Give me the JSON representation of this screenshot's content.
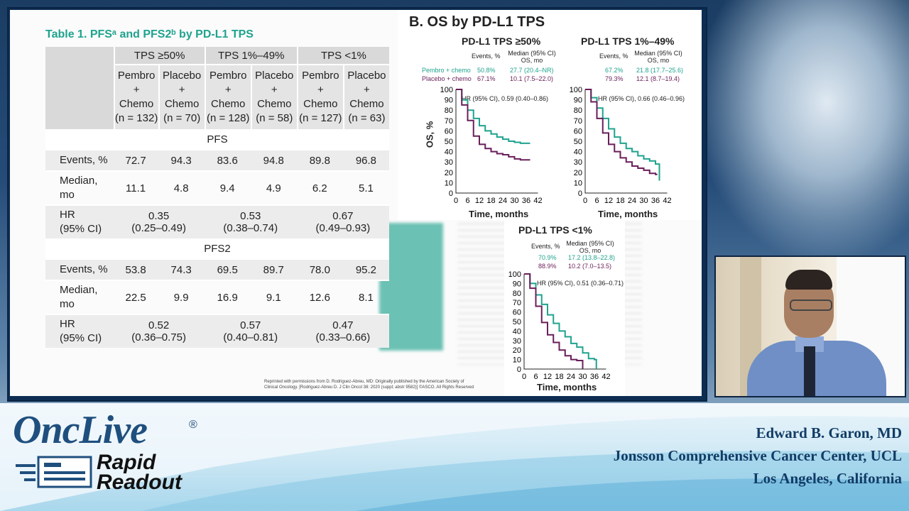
{
  "table": {
    "title": "Table 1. PFSᵃ and PFS2ᵇ by PD-L1 TPS",
    "groups": [
      "TPS ≥50%",
      "TPS 1%–49%",
      "TPS <1%"
    ],
    "arms": [
      [
        "Pembro",
        "+",
        "Chemo",
        "(n = 132)"
      ],
      [
        "Placebo",
        "+",
        "Chemo",
        "(n = 70)"
      ],
      [
        "Pembro",
        "+",
        "Chemo",
        "(n = 128)"
      ],
      [
        "Placebo",
        "+",
        "Chemo",
        "(n = 58)"
      ],
      [
        "Pembro",
        "+",
        "Chemo",
        "(n = 127)"
      ],
      [
        "Placebo",
        "+",
        "Chemo",
        "(n = 63)"
      ]
    ],
    "pfs_label": "PFS",
    "pfs_events": [
      "Events, %",
      "72.7",
      "94.3",
      "83.6",
      "94.8",
      "89.8",
      "96.8"
    ],
    "pfs_median": [
      "Median,",
      "mo",
      "11.1",
      "4.8",
      "9.4",
      "4.9",
      "6.2",
      "5.1"
    ],
    "pfs_hr": [
      "HR",
      "(95% CI)",
      "0.35",
      "(0.25–0.49)",
      "0.53",
      "(0.38–0.74)",
      "0.67",
      "(0.49–0.93)"
    ],
    "pfs2_label": "PFS2",
    "pfs2_events": [
      "Events, %",
      "53.8",
      "74.3",
      "69.5",
      "89.7",
      "78.0",
      "95.2"
    ],
    "pfs2_median": [
      "Median,",
      "mo",
      "22.5",
      "9.9",
      "16.9",
      "9.1",
      "12.6",
      "8.1"
    ],
    "pfs2_hr": [
      "HR",
      "(95% CI)",
      "0.52",
      "(0.36–0.75)",
      "0.57",
      "(0.40–0.81)",
      "0.47",
      "(0.33–0.66)"
    ]
  },
  "km": {
    "section_title": "B. OS by PD-L1 TPS",
    "y_label": "OS, %",
    "x_label": "Time, months",
    "x_ticks": [
      "0",
      "6",
      "12",
      "18",
      "24",
      "30",
      "36",
      "42"
    ],
    "y_ticks": [
      "100",
      "90",
      "80",
      "70",
      "60",
      "50",
      "40",
      "30",
      "20",
      "10",
      "0"
    ],
    "col_events": "Events, %",
    "col_median": "Median (95% CI)",
    "col_median2": "OS, mo",
    "arm1": "Pembro + chemo",
    "arm2": "Placebo + chemo",
    "panels": [
      {
        "title": "PD-L1 TPS ≥50%",
        "e1": "50.8%",
        "m1": "27.7 (20.4–NR)",
        "e2": "67.1%",
        "m2": "10.1 (7.5–22.0)",
        "hr": "HR (95% CI), 0.59 (0.40–0.86)"
      },
      {
        "title": "PD-L1 TPS 1%–49%",
        "e1": "67.2%",
        "m1": "21.8 (17.7–25.6)",
        "e2": "79.3%",
        "m2": "12.1 (8.7–19.4)",
        "hr": "HR (95% CI), 0.66 (0.46–0.96)"
      },
      {
        "title": "PD-L1 TPS <1%",
        "e1": "70.9%",
        "m1": "17.2 (13.8–22.8)",
        "e2": "88.9%",
        "m2": "10.2 (7.0–13.5)",
        "hr": "HR (95% CI), 0.51 (0.36–0.71)"
      }
    ],
    "colors": {
      "pembro": "#1fa38e",
      "placebo": "#6a1f5a"
    }
  },
  "credit": "Reprinted with permissions from D. Rodriguez-Abreu, MD: Originally published by the American Society of Clinical Oncology. [Rodriguez-Abreu D. J Clin Oncol 38: 2020 (suppl; abstr 9582)] ©ASCO. All Rights Reserved",
  "branding": {
    "name1": "OncLive",
    "reg": "®",
    "name2a": "Rapid",
    "name2b": "Readout"
  },
  "speaker": {
    "name": "Edward B. Garon, MD",
    "affiliation": "Jonsson Comprehensive Cancer Center, UCL",
    "location": "Los Angeles, California"
  }
}
